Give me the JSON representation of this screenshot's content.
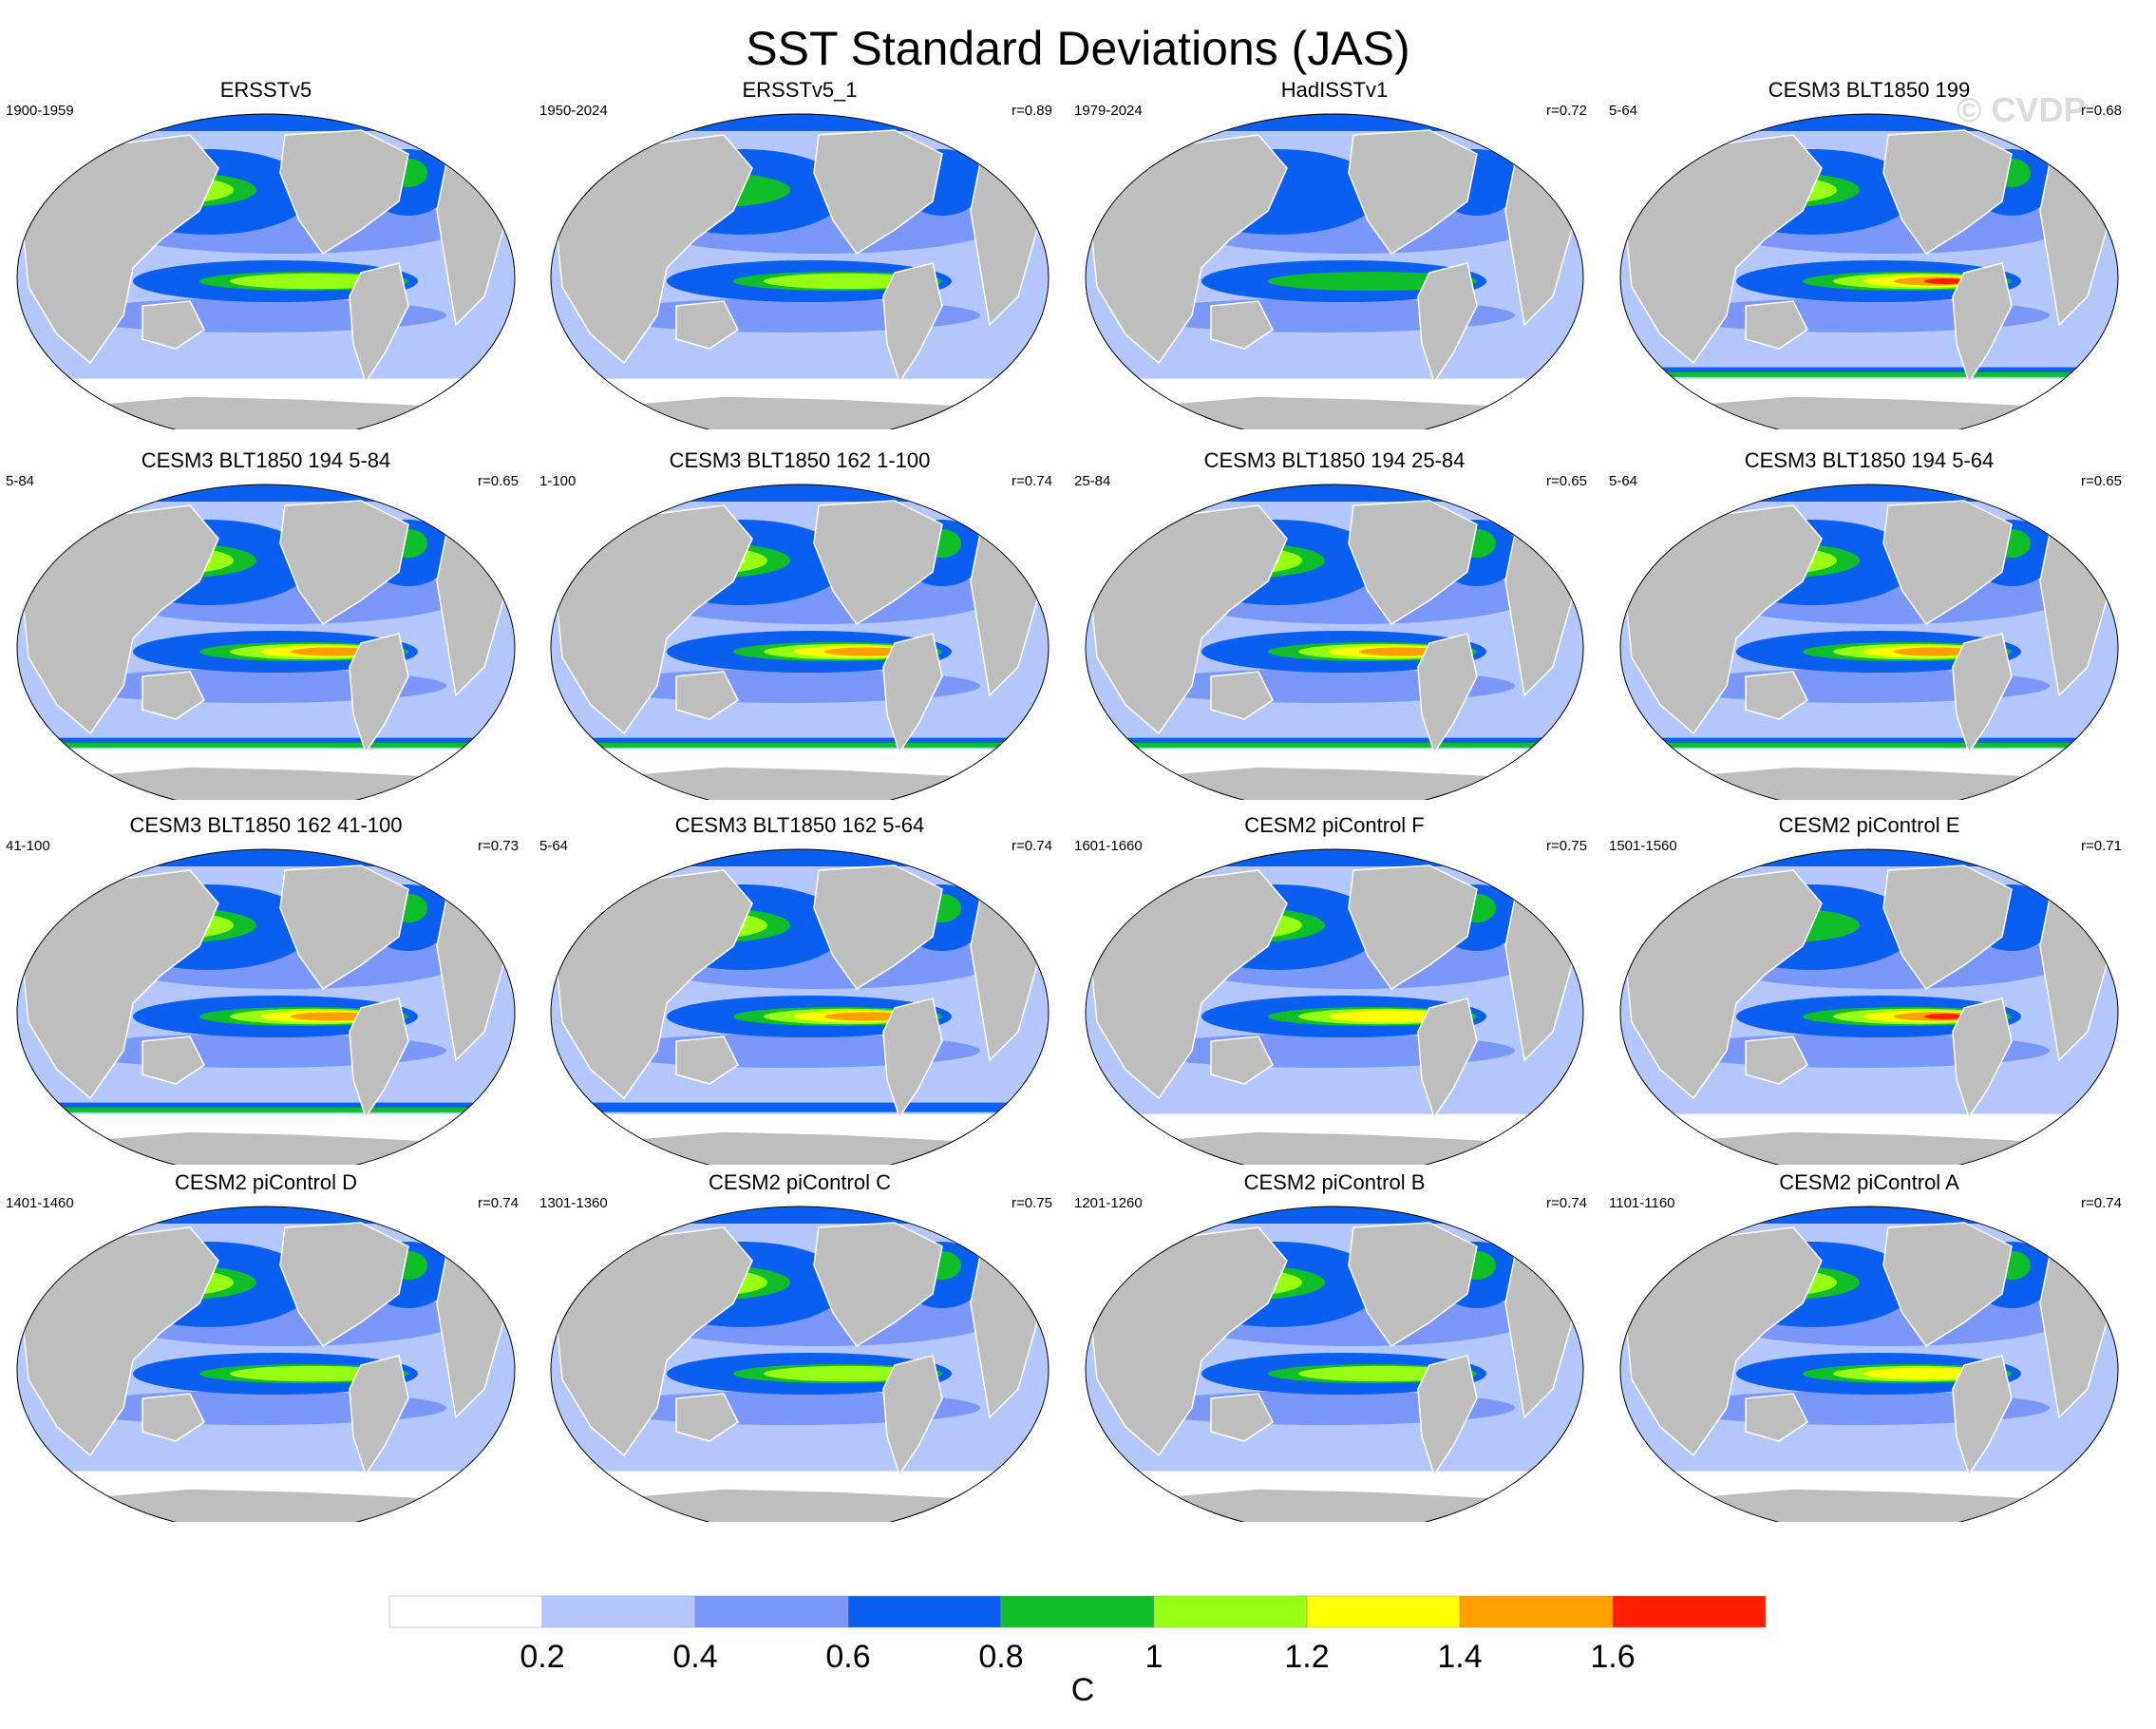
{
  "title": "SST Standard Deviations (JAS)",
  "watermark": "© CVDP",
  "chart_data": {
    "type": "heatmap",
    "projection": "global map panels (4 x 4 grid)",
    "panels": [
      {
        "name": "ERSSTv5",
        "years": "1900-1959",
        "r": ""
      },
      {
        "name": "ERSSTv5_1",
        "years": "1950-2024",
        "r": "r=0.89"
      },
      {
        "name": "HadISSTv1",
        "years": "1979-2024",
        "r": "r=0.72"
      },
      {
        "name": "CESM3 BLT1850 199",
        "years": "5-64",
        "r": "r=0.68"
      },
      {
        "name": "CESM3 BLT1850 194 5-84",
        "years": "5-84",
        "r": "r=0.65"
      },
      {
        "name": "CESM3 BLT1850 162 1-100",
        "years": "1-100",
        "r": "r=0.74"
      },
      {
        "name": "CESM3 BLT1850 194 25-84",
        "years": "25-84",
        "r": "r=0.65"
      },
      {
        "name": "CESM3 BLT1850 194 5-64",
        "years": "5-64",
        "r": "r=0.65"
      },
      {
        "name": "CESM3 BLT1850 162 41-100",
        "years": "41-100",
        "r": "r=0.73"
      },
      {
        "name": "CESM3 BLT1850 162 5-64",
        "years": "5-64",
        "r": "r=0.74"
      },
      {
        "name": "CESM2 piControl F",
        "years": "1601-1660",
        "r": "r=0.75"
      },
      {
        "name": "CESM2 piControl E",
        "years": "1501-1560",
        "r": "r=0.71"
      },
      {
        "name": "CESM2 piControl D",
        "years": "1401-1460",
        "r": "r=0.74"
      },
      {
        "name": "CESM2 piControl C",
        "years": "1301-1360",
        "r": "r=0.75"
      },
      {
        "name": "CESM2 piControl B",
        "years": "1201-1260",
        "r": "r=0.74"
      },
      {
        "name": "CESM2 piControl A",
        "years": "1101-1160",
        "r": "r=0.74"
      }
    ],
    "colorbar": {
      "levels": [
        "0.2",
        "0.4",
        "0.6",
        "0.8",
        "1",
        "1.2",
        "1.4",
        "1.6"
      ],
      "colors": [
        "#ffffff",
        "#b4c8ff",
        "#7b97fa",
        "#0a5ff0",
        "#0fbe28",
        "#96ff14",
        "#ffff00",
        "#ffa000",
        "#ff1e00"
      ],
      "unit": "C"
    },
    "land_color": "#bebebe"
  }
}
